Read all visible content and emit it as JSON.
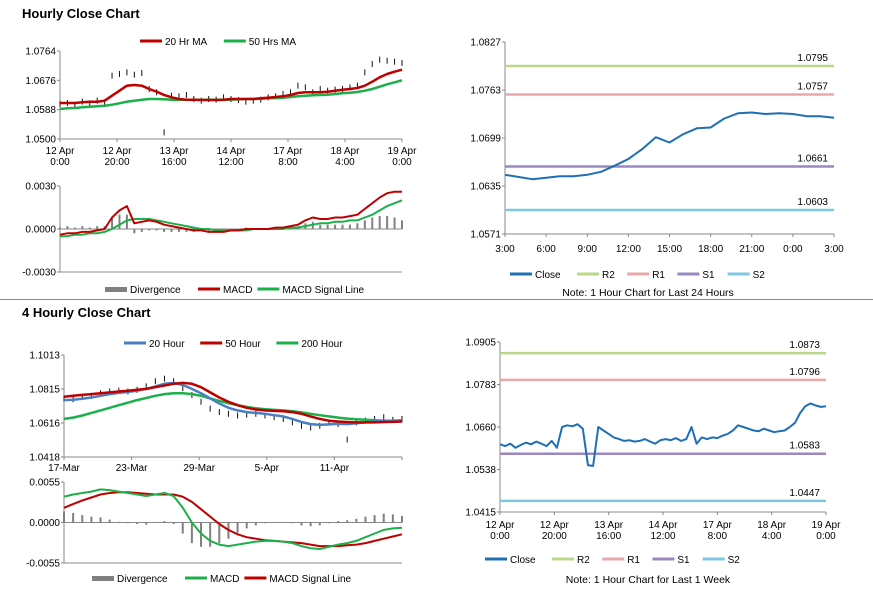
{
  "headers": {
    "hourly": "Hourly Close Chart",
    "four_hourly": "4 Hourly Close Chart"
  },
  "colors": {
    "close": "#1f6fb5",
    "ma_red": "#c00000",
    "ma_green": "#1cb04a",
    "ma_blue": "#4a7fc0",
    "r2": "#b8d88a",
    "r1": "#e8a8a8",
    "s1": "#9a88c0",
    "s2": "#7ec8e3",
    "divergence": "#808080"
  },
  "chart_data": [
    {
      "id": "hourly-price",
      "type": "line",
      "legend": [
        "20 Hr MA",
        "50 Hrs MA"
      ],
      "x_ticks": [
        "12 Apr\n0:00",
        "12 Apr\n20:00",
        "13 Apr\n16:00",
        "14 Apr\n12:00",
        "17 Apr\n8:00",
        "18 Apr\n4:00",
        "19 Apr\n0:00"
      ],
      "y_ticks": [
        "1.0500",
        "1.0588",
        "1.0676",
        "1.0764"
      ],
      "ylim": [
        1.05,
        1.0764
      ],
      "series": [
        {
          "name": "Close",
          "values": [
            1.0605,
            1.0608,
            1.0603,
            1.0612,
            1.0607,
            1.0615,
            1.061,
            1.069,
            1.0695,
            1.07,
            1.0693,
            1.0698,
            1.065,
            1.064,
            1.052,
            1.063,
            1.0628,
            1.0632,
            1.062,
            1.0615,
            1.062,
            1.0618,
            1.0625,
            1.062,
            1.0617,
            1.0612,
            1.0615,
            1.0618,
            1.0625,
            1.0628,
            1.0635,
            1.064,
            1.066,
            1.0655,
            1.064,
            1.065,
            1.0645,
            1.0648,
            1.065,
            1.0655,
            1.066,
            1.07,
            1.0725,
            1.0738,
            1.0735,
            1.0732,
            1.0728
          ]
        },
        {
          "name": "20 Hr MA",
          "values": [
            1.0608,
            1.0608,
            1.0608,
            1.061,
            1.0612,
            1.0612,
            1.0615,
            1.063,
            1.0645,
            1.066,
            1.0662,
            1.066,
            1.065,
            1.0642,
            1.0632,
            1.0625,
            1.062,
            1.0618,
            1.0618,
            1.0617,
            1.0617,
            1.0617,
            1.0618,
            1.062,
            1.062,
            1.062,
            1.062,
            1.0622,
            1.0624,
            1.0626,
            1.0628,
            1.0632,
            1.0638,
            1.064,
            1.064,
            1.064,
            1.0642,
            1.0645,
            1.0648,
            1.065,
            1.0653,
            1.066,
            1.0672,
            1.0685,
            1.0695,
            1.0702,
            1.0708
          ]
        },
        {
          "name": "50 Hrs MA",
          "values": [
            1.059,
            1.0592,
            1.0593,
            1.0595,
            1.0597,
            1.0598,
            1.06,
            1.0603,
            1.0607,
            1.0612,
            1.0615,
            1.0618,
            1.062,
            1.062,
            1.0619,
            1.0618,
            1.0618,
            1.0618,
            1.0618,
            1.0618,
            1.0618,
            1.0618,
            1.0618,
            1.0618,
            1.0619,
            1.062,
            1.062,
            1.0621,
            1.0622,
            1.0623,
            1.0624,
            1.0626,
            1.0628,
            1.063,
            1.0631,
            1.0632,
            1.0633,
            1.0635,
            1.0637,
            1.0639,
            1.0641,
            1.0645,
            1.065,
            1.0657,
            1.0664,
            1.067,
            1.0676
          ]
        }
      ]
    },
    {
      "id": "hourly-macd",
      "type": "line",
      "legend": [
        "Divergence",
        "MACD",
        "MACD Signal Line"
      ],
      "y_ticks": [
        "-0.0030",
        "0.0000",
        "0.0030"
      ],
      "ylim": [
        -0.003,
        0.003
      ],
      "series": [
        {
          "name": "MACD",
          "values": [
            -0.0004,
            -0.0003,
            -0.0003,
            -0.0002,
            -0.0002,
            -0.0001,
            0.0,
            0.0008,
            0.0013,
            0.0016,
            0.0004,
            0.0005,
            0.0006,
            0.0005,
            0.0003,
            0.0002,
            0.0001,
            0.0,
            -0.0001,
            -0.0001,
            -0.0002,
            -0.0002,
            -0.0002,
            -0.0001,
            -0.0001,
            0.0,
            0.0,
            0.0,
            0.0,
            0.0001,
            0.0001,
            0.0002,
            0.0003,
            0.0006,
            0.0008,
            0.0007,
            0.0007,
            0.0008,
            0.0008,
            0.0009,
            0.001,
            0.0014,
            0.0018,
            0.0022,
            0.0025,
            0.0026,
            0.0026
          ]
        },
        {
          "name": "MACD Signal Line",
          "values": [
            -0.0005,
            -0.0005,
            -0.0004,
            -0.0004,
            -0.0003,
            -0.0003,
            -0.0002,
            0.0,
            0.0003,
            0.0006,
            0.0007,
            0.0007,
            0.0007,
            0.0006,
            0.0005,
            0.0004,
            0.0003,
            0.0002,
            0.0001,
            0.0,
            0.0,
            -0.0001,
            -0.0001,
            -0.0001,
            -0.0001,
            -0.0001,
            0.0,
            0.0,
            0.0,
            0.0,
            0.0,
            0.0001,
            0.0001,
            0.0002,
            0.0003,
            0.0004,
            0.0004,
            0.0005,
            0.0005,
            0.0006,
            0.0006,
            0.0008,
            0.001,
            0.0013,
            0.0016,
            0.0018,
            0.002
          ]
        }
      ]
    },
    {
      "id": "hourly-levels",
      "type": "line",
      "x_ticks": [
        "3:00",
        "6:00",
        "9:00",
        "12:00",
        "15:00",
        "18:00",
        "21:00",
        "0:00",
        "3:00"
      ],
      "y_ticks": [
        "1.0571",
        "1.0635",
        "1.0699",
        "1.0763",
        "1.0827"
      ],
      "ylim": [
        1.0571,
        1.0827
      ],
      "levels": [
        {
          "name": "R2",
          "value": 1.0795,
          "label": "1.0795"
        },
        {
          "name": "R1",
          "value": 1.0757,
          "label": "1.0757"
        },
        {
          "name": "S1",
          "value": 1.0661,
          "label": "1.0661"
        },
        {
          "name": "S2",
          "value": 1.0603,
          "label": "1.0603"
        }
      ],
      "legend": [
        "Close",
        "R2",
        "R1",
        "S1",
        "S2"
      ],
      "note": "Note: 1 Hour Chart for Last 24 Hours",
      "series": [
        {
          "name": "Close",
          "values": [
            1.065,
            1.0647,
            1.0644,
            1.0646,
            1.0648,
            1.0648,
            1.065,
            1.0654,
            1.0662,
            1.0671,
            1.0684,
            1.07,
            1.0693,
            1.0704,
            1.0712,
            1.0713,
            1.0725,
            1.0732,
            1.0733,
            1.0731,
            1.0732,
            1.0731,
            1.0728,
            1.0728,
            1.0726
          ]
        }
      ]
    },
    {
      "id": "four-hourly-price",
      "type": "line",
      "legend": [
        "20 Hour",
        "50 Hour",
        "200 Hour"
      ],
      "x_ticks": [
        "17-Mar",
        "23-Mar",
        "29-Mar",
        "5-Apr",
        "11-Apr"
      ],
      "y_ticks": [
        "1.0418",
        "1.0616",
        "1.0815",
        "1.1013"
      ],
      "ylim": [
        1.0418,
        1.1013
      ],
      "series": [
        {
          "name": "Close",
          "values": [
            1.076,
            1.0755,
            1.077,
            1.0775,
            1.079,
            1.08,
            1.0805,
            1.08,
            1.081,
            1.083,
            1.086,
            1.0875,
            1.086,
            1.082,
            1.078,
            1.074,
            1.07,
            1.068,
            1.067,
            1.066,
            1.0665,
            1.067,
            1.066,
            1.065,
            1.064,
            1.062,
            1.06,
            1.059,
            1.06,
            1.062,
            1.061,
            1.052,
            1.062,
            1.063,
            1.064,
            1.065,
            1.0635,
            1.064
          ]
        },
        {
          "name": "20 Hour",
          "values": [
            1.075,
            1.0752,
            1.0758,
            1.0765,
            1.0775,
            1.0785,
            1.0792,
            1.0798,
            1.0805,
            1.0815,
            1.083,
            1.0845,
            1.085,
            1.0838,
            1.0815,
            1.079,
            1.076,
            1.073,
            1.0705,
            1.069,
            1.068,
            1.0675,
            1.067,
            1.0662,
            1.0655,
            1.064,
            1.0622,
            1.061,
            1.0605,
            1.0608,
            1.0612,
            1.061,
            1.0615,
            1.062,
            1.0625,
            1.063,
            1.063,
            1.0632
          ]
        },
        {
          "name": "50 Hour",
          "values": [
            1.077,
            1.0775,
            1.078,
            1.0785,
            1.079,
            1.0795,
            1.08,
            1.0805,
            1.081,
            1.0815,
            1.0825,
            1.0835,
            1.0845,
            1.085,
            1.0845,
            1.0825,
            1.0795,
            1.0765,
            1.074,
            1.072,
            1.0705,
            1.0695,
            1.069,
            1.0687,
            1.0685,
            1.068,
            1.067,
            1.0655,
            1.064,
            1.063,
            1.0625,
            1.0622,
            1.062,
            1.062,
            1.062,
            1.0622,
            1.0623,
            1.0625
          ]
        },
        {
          "name": "200 Hour",
          "values": [
            1.064,
            1.0648,
            1.066,
            1.0675,
            1.069,
            1.0705,
            1.072,
            1.0735,
            1.075,
            1.0762,
            1.0775,
            1.0785,
            1.079,
            1.079,
            1.0785,
            1.0775,
            1.076,
            1.0745,
            1.0732,
            1.072,
            1.071,
            1.0702,
            1.0697,
            1.0693,
            1.069,
            1.0685,
            1.0678,
            1.067,
            1.0662,
            1.0655,
            1.0648,
            1.0642,
            1.0638,
            1.0635,
            1.0632,
            1.063,
            1.0628,
            1.0627
          ]
        }
      ]
    },
    {
      "id": "four-hourly-macd",
      "type": "line",
      "legend": [
        "Divergence",
        "MACD",
        "MACD Signal Line"
      ],
      "y_ticks": [
        "-0.0055",
        "0.0000",
        "0.0055"
      ],
      "ylim": [
        -0.0055,
        0.0055
      ],
      "series": [
        {
          "name": "MACD",
          "values": [
            0.0035,
            0.0038,
            0.004,
            0.0042,
            0.0045,
            0.0044,
            0.0042,
            0.004,
            0.0038,
            0.0036,
            0.0038,
            0.004,
            0.0036,
            0.002,
            0.0,
            -0.0015,
            -0.0025,
            -0.003,
            -0.0032,
            -0.003,
            -0.0028,
            -0.0026,
            -0.0025,
            -0.0025,
            -0.0026,
            -0.0028,
            -0.0032,
            -0.0035,
            -0.0036,
            -0.0033,
            -0.003,
            -0.0028,
            -0.0025,
            -0.002,
            -0.0015,
            -0.001,
            -0.0008,
            -0.0007
          ]
        },
        {
          "name": "MACD Signal Line",
          "values": [
            0.002,
            0.0025,
            0.003,
            0.0034,
            0.0038,
            0.004,
            0.0041,
            0.0041,
            0.004,
            0.0039,
            0.0038,
            0.0038,
            0.0038,
            0.0035,
            0.0028,
            0.0018,
            0.0008,
            -0.0002,
            -0.001,
            -0.0016,
            -0.002,
            -0.0022,
            -0.0024,
            -0.0025,
            -0.0026,
            -0.0027,
            -0.0028,
            -0.003,
            -0.0032,
            -0.0032,
            -0.0032,
            -0.0031,
            -0.003,
            -0.0028,
            -0.0025,
            -0.0022,
            -0.0019,
            -0.0016
          ]
        }
      ]
    },
    {
      "id": "four-hourly-levels",
      "type": "line",
      "x_ticks": [
        "12 Apr\n0:00",
        "12 Apr\n20:00",
        "13 Apr\n16:00",
        "14 Apr\n12:00",
        "17 Apr\n8:00",
        "18 Apr\n4:00",
        "19 Apr\n0:00"
      ],
      "y_ticks": [
        "1.0415",
        "1.0538",
        "1.0660",
        "1.0783",
        "1.0905"
      ],
      "ylim": [
        1.0415,
        1.0905
      ],
      "levels": [
        {
          "name": "R2",
          "value": 1.0873,
          "label": "1.0873"
        },
        {
          "name": "R1",
          "value": 1.0796,
          "label": "1.0796"
        },
        {
          "name": "S1",
          "value": 1.0583,
          "label": "1.0583"
        },
        {
          "name": "S2",
          "value": 1.0447,
          "label": "1.0447"
        }
      ],
      "legend": [
        "Close",
        "R2",
        "R1",
        "S1",
        "S2"
      ],
      "note": "Note: 1 Hour Chart for Last 1 Week",
      "series": [
        {
          "name": "Close",
          "values": [
            1.061,
            1.0605,
            1.0612,
            1.06,
            1.0608,
            1.0615,
            1.061,
            1.0618,
            1.0612,
            1.0605,
            1.062,
            1.06,
            1.066,
            1.0665,
            1.0662,
            1.0668,
            1.0655,
            1.055,
            1.0548,
            1.066,
            1.065,
            1.064,
            1.063,
            1.0625,
            1.062,
            1.0622,
            1.0618,
            1.062,
            1.0625,
            1.0618,
            1.0612,
            1.0622,
            1.0625,
            1.0622,
            1.0628,
            1.062,
            1.0625,
            1.066,
            1.0612,
            1.063,
            1.0625,
            1.063,
            1.0628,
            1.0635,
            1.064,
            1.065,
            1.0665,
            1.066,
            1.0655,
            1.065,
            1.0648,
            1.0655,
            1.065,
            1.0645,
            1.0648,
            1.065,
            1.066,
            1.0672,
            1.07,
            1.072,
            1.0728,
            1.0722,
            1.0718,
            1.072
          ]
        }
      ]
    }
  ]
}
